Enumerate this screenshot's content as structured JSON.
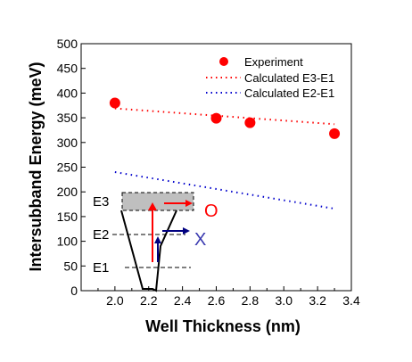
{
  "chart_data": {
    "type": "scatter",
    "xlabel": "Well Thickness (nm)",
    "ylabel": "Intersubband Energy (meV)",
    "xlim": [
      1.8,
      3.4
    ],
    "ylim": [
      0,
      500
    ],
    "x_ticks": [
      "2.0",
      "2.2",
      "2.4",
      "2.6",
      "2.8",
      "3.0",
      "3.2",
      "3.4"
    ],
    "y_ticks": [
      "0",
      "50",
      "100",
      "150",
      "200",
      "250",
      "300",
      "350",
      "400",
      "450",
      "500"
    ],
    "grid": false,
    "legend_position": "top-right",
    "series": [
      {
        "name": "Experiment",
        "style": "marker",
        "color": "#ff0000",
        "x": [
          2.0,
          2.6,
          2.8,
          3.3
        ],
        "y": [
          380,
          349,
          340,
          318
        ]
      },
      {
        "name": "Calculated E3-E1",
        "style": "dotted",
        "color": "#ff0000",
        "x": [
          2.0,
          3.3
        ],
        "y": [
          369,
          337
        ]
      },
      {
        "name": "Calculated E2-E1",
        "style": "dotted",
        "color": "#0000cc",
        "x": [
          2.0,
          3.3
        ],
        "y": [
          240,
          166
        ]
      }
    ],
    "inset": {
      "level_labels": [
        "E3",
        "E2",
        "E1"
      ],
      "allowed_symbol": "O",
      "forbidden_symbol": "X"
    }
  }
}
